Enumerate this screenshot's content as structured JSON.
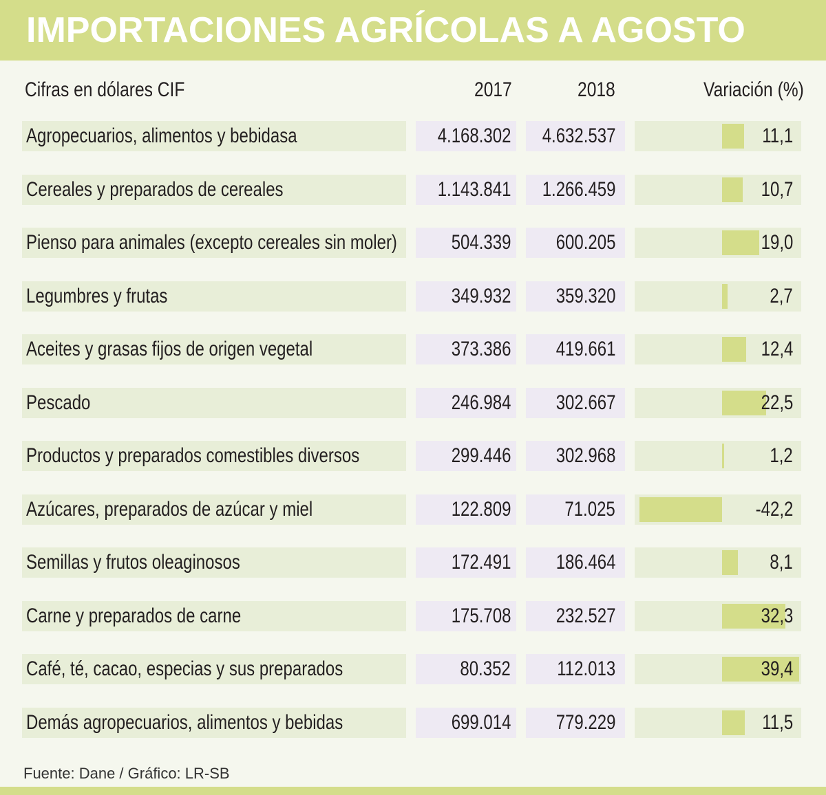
{
  "title": "IMPORTACIONES AGRÍCOLAS A AGOSTO",
  "headers": {
    "label": "Cifras en dólares CIF",
    "y2017": "2017",
    "y2018": "2018",
    "variation": "Variación (%)"
  },
  "footer": "Fuente: Dane / Gráfico: LR-SB",
  "colors": {
    "bar": "#d4dd8a",
    "title_bg": "#d4dd8a",
    "row_bg": "#e8eed8",
    "value_bg": "#eeeaf3"
  },
  "chart_data": {
    "type": "table",
    "title": "IMPORTACIONES AGRÍCOLAS A AGOSTO",
    "columns": [
      "Cifras en dólares CIF",
      "2017",
      "2018",
      "Variación (%)"
    ],
    "rows": [
      {
        "label": "Agropecuarios, alimentos y bebidasa",
        "v2017": "4.168.302",
        "v2018": "4.632.537",
        "variation": "11,1",
        "variation_value": 11.1
      },
      {
        "label": "Cereales y preparados de cereales",
        "v2017": "1.143.841",
        "v2018": "1.266.459",
        "variation": "10,7",
        "variation_value": 10.7
      },
      {
        "label": "Pienso para animales (excepto cereales sin moler)",
        "v2017": "504.339",
        "v2018": "600.205",
        "variation": "19,0",
        "variation_value": 19.0
      },
      {
        "label": "Legumbres y frutas",
        "v2017": "349.932",
        "v2018": "359.320",
        "variation": "2,7",
        "variation_value": 2.7
      },
      {
        "label": "Aceites y grasas fijos de origen vegetal",
        "v2017": "373.386",
        "v2018": "419.661",
        "variation": "12,4",
        "variation_value": 12.4
      },
      {
        "label": "Pescado",
        "v2017": "246.984",
        "v2018": "302.667",
        "variation": "22,5",
        "variation_value": 22.5
      },
      {
        "label": "Productos y preparados comestibles diversos",
        "v2017": "299.446",
        "v2018": "302.968",
        "variation": "1,2",
        "variation_value": 1.2
      },
      {
        "label": "Azúcares, preparados de azúcar y miel",
        "v2017": "122.809",
        "v2018": "71.025",
        "variation": "-42,2",
        "variation_value": -42.2
      },
      {
        "label": "Semillas y frutos oleaginosos",
        "v2017": "172.491",
        "v2018": "186.464",
        "variation": "8,1",
        "variation_value": 8.1
      },
      {
        "label": "Carne y preparados de carne",
        "v2017": "175.708",
        "v2018": "232.527",
        "variation": "32,3",
        "variation_value": 32.3
      },
      {
        "label": "Café, té, cacao, especias y sus preparados",
        "v2017": "80.352",
        "v2018": "112.013",
        "variation": "39,4",
        "variation_value": 39.4
      },
      {
        "label": "Demás agropecuarios, alimentos y bebidas",
        "v2017": "699.014",
        "v2018": "779.229",
        "variation": "11,5",
        "variation_value": 11.5
      }
    ]
  }
}
